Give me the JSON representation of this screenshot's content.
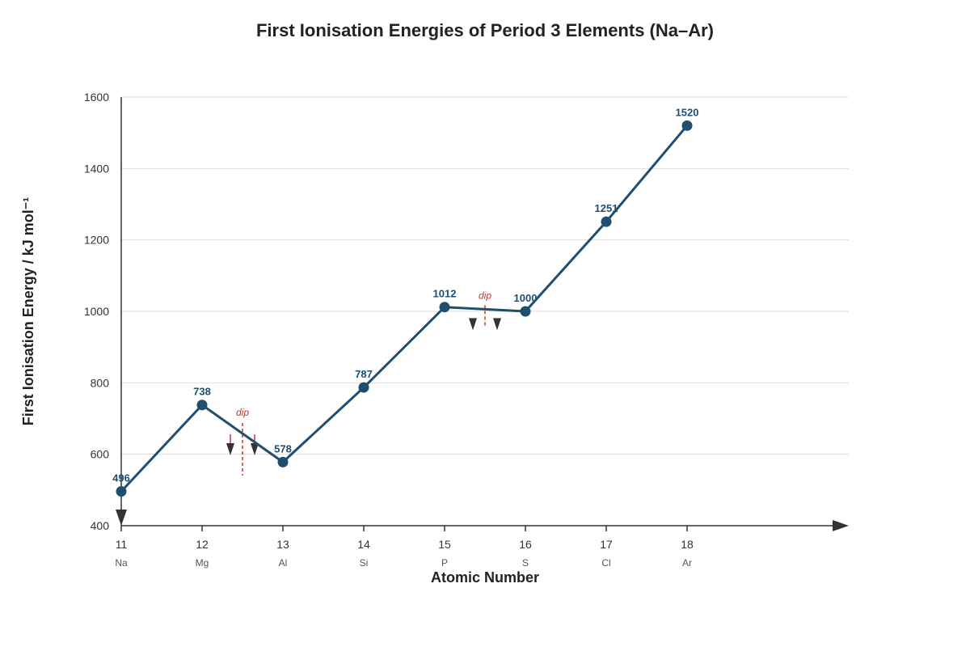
{
  "chart_data": {
    "type": "line",
    "title": "First Ionisation Energies of Period 3 Elements (Na–Ar)",
    "xlabel": "Atomic Number",
    "ylabel": "First Ionisation Energy / kJ mol⁻¹",
    "x": [
      11,
      12,
      13,
      14,
      15,
      16,
      17,
      18
    ],
    "symbols": [
      "Na",
      "Mg",
      "Al",
      "Si",
      "P",
      "S",
      "Cl",
      "Ar"
    ],
    "values": [
      496,
      738,
      578,
      787,
      1012,
      1000,
      1251,
      1520
    ],
    "data_labels": [
      "496",
      "738",
      "578",
      "787",
      "1012",
      "1000",
      "1251",
      "1520"
    ],
    "xlim": [
      11,
      20
    ],
    "ylim": [
      400,
      1600
    ],
    "yticks": [
      400,
      600,
      800,
      1000,
      1200,
      1400,
      1600
    ],
    "xtick_labels": [
      "11",
      "12",
      "13",
      "14",
      "15",
      "16",
      "17",
      "18"
    ],
    "ytick_labels": [
      "400",
      "600",
      "800",
      "1000",
      "1200",
      "1400",
      "1600"
    ],
    "grid": true,
    "annotations": [
      {
        "text": "dip",
        "between": [
          12,
          13
        ]
      },
      {
        "text": "dip",
        "between": [
          15,
          16
        ]
      }
    ],
    "colors": {
      "line": "#1f4e6e",
      "marker": "#1f4e6e",
      "annotation": "#c0392b",
      "axis": "#333333",
      "grid": "#dddddd"
    }
  }
}
